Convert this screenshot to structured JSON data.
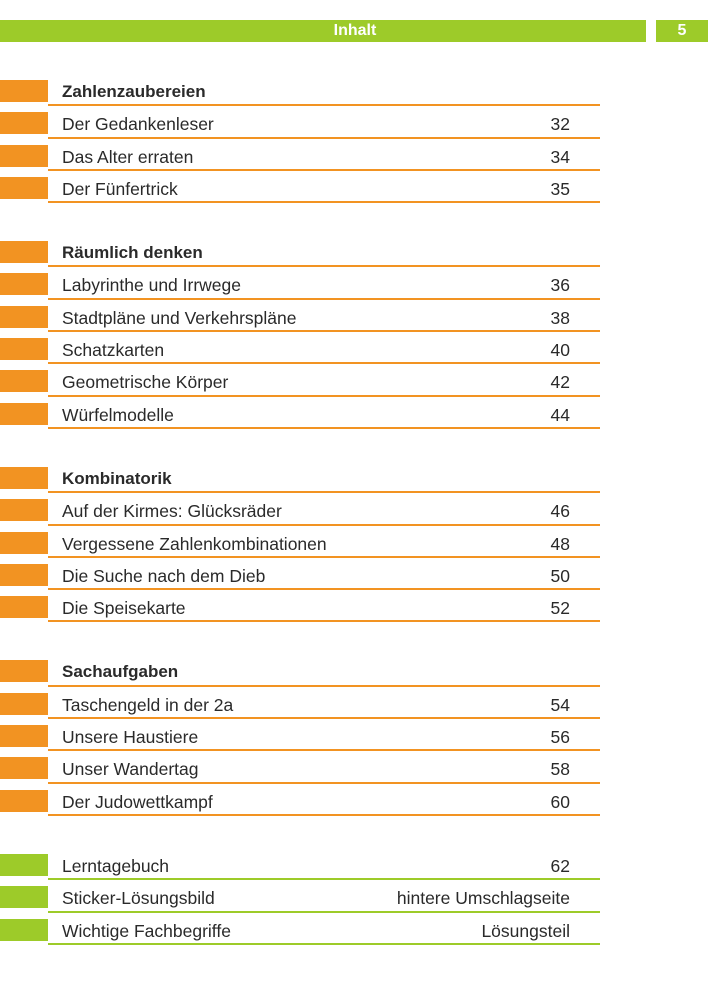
{
  "header": {
    "title": "Inhalt",
    "page_number": "5"
  },
  "colors": {
    "orange": "#f29322",
    "green": "#9dcb29"
  },
  "sections": [
    {
      "heading": "Zahlenzaubereien",
      "entries": [
        {
          "title": "Der Gedankenleser",
          "page": "32"
        },
        {
          "title": "Das Alter erraten",
          "page": "34"
        },
        {
          "title": "Der Fünfertrick",
          "page": "35"
        }
      ]
    },
    {
      "heading": "Räumlich denken",
      "entries": [
        {
          "title": "Labyrinthe und Irrwege",
          "page": "36"
        },
        {
          "title": "Stadtpläne und Verkehrspläne",
          "page": "38"
        },
        {
          "title": "Schatzkarten",
          "page": "40"
        },
        {
          "title": "Geometrische Körper",
          "page": "42"
        },
        {
          "title": "Würfelmodelle",
          "page": "44"
        }
      ]
    },
    {
      "heading": "Kombinatorik",
      "entries": [
        {
          "title": "Auf der Kirmes: Glücksräder",
          "page": "46"
        },
        {
          "title": "Vergessene Zahlenkombinationen",
          "page": "48"
        },
        {
          "title": "Die Suche nach dem Dieb",
          "page": "50"
        },
        {
          "title": "Die Speisekarte",
          "page": "52"
        }
      ]
    },
    {
      "heading": "Sachaufgaben",
      "entries": [
        {
          "title": "Taschengeld in der 2a",
          "page": "54"
        },
        {
          "title": "Unsere Haustiere",
          "page": "56"
        },
        {
          "title": "Unser Wandertag",
          "page": "58"
        },
        {
          "title": "Der Judowettkampf",
          "page": "60"
        }
      ]
    }
  ],
  "appendix": [
    {
      "title": "Lerntagebuch",
      "page": "62"
    },
    {
      "title": "Sticker-Lösungsbild",
      "page": "hintere Umschlagseite"
    },
    {
      "title": "Wichtige Fachbegriffe",
      "page": "Lösungsteil"
    }
  ]
}
